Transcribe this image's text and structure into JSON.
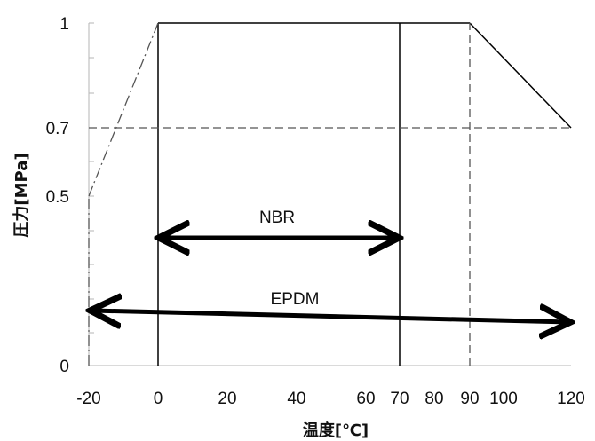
{
  "chart_data": {
    "type": "line",
    "xlabel": "温度[℃]",
    "ylabel": "圧力[MPa]",
    "xlim": [
      -20,
      120
    ],
    "ylim": [
      0,
      1
    ],
    "x_ticks": [
      {
        "value": -20,
        "label": "-20"
      },
      {
        "value": 0,
        "label": "0"
      },
      {
        "value": 20,
        "label": "20"
      },
      {
        "value": 40,
        "label": "40"
      },
      {
        "value": 60,
        "label": "60"
      },
      {
        "value": 70,
        "label": "70"
      },
      {
        "value": 80,
        "label": "80"
      },
      {
        "value": 90,
        "label": "90"
      },
      {
        "value": 100,
        "label": "100"
      },
      {
        "value": 120,
        "label": "120"
      }
    ],
    "y_ticks": [
      {
        "value": 0,
        "label": "0"
      },
      {
        "value": 0.5,
        "label": "0.5"
      },
      {
        "value": 0.7,
        "label": "0.7"
      },
      {
        "value": 1,
        "label": "1"
      }
    ],
    "lines": [
      {
        "style": "solid",
        "points": [
          [
            0,
            0
          ],
          [
            0,
            1
          ]
        ]
      },
      {
        "style": "solid",
        "points": [
          [
            0,
            1
          ],
          [
            90,
            1
          ]
        ]
      },
      {
        "style": "solid",
        "points": [
          [
            90,
            1
          ],
          [
            120,
            0.7
          ]
        ]
      },
      {
        "style": "solid",
        "points": [
          [
            70,
            0
          ],
          [
            70,
            1
          ]
        ]
      },
      {
        "style": "dash-dot",
        "points": [
          [
            -20,
            0.5
          ],
          [
            0,
            1
          ]
        ]
      },
      {
        "style": "dash-dot",
        "points": [
          [
            -20,
            0
          ],
          [
            -20,
            0.5
          ]
        ]
      },
      {
        "style": "dashed",
        "points": [
          [
            -20,
            0.7
          ],
          [
            120,
            0.7
          ]
        ]
      },
      {
        "style": "dashed",
        "points": [
          [
            90,
            0
          ],
          [
            90,
            1
          ]
        ]
      }
    ],
    "ranges": [
      {
        "name": "NBR",
        "from": 0,
        "to": 70,
        "y": 0.37
      },
      {
        "name": "EPDM",
        "from": -20,
        "to": 120,
        "y": 0.16
      }
    ],
    "colors": {
      "line": "#000000",
      "axis_light": "#b5b5b5"
    }
  }
}
